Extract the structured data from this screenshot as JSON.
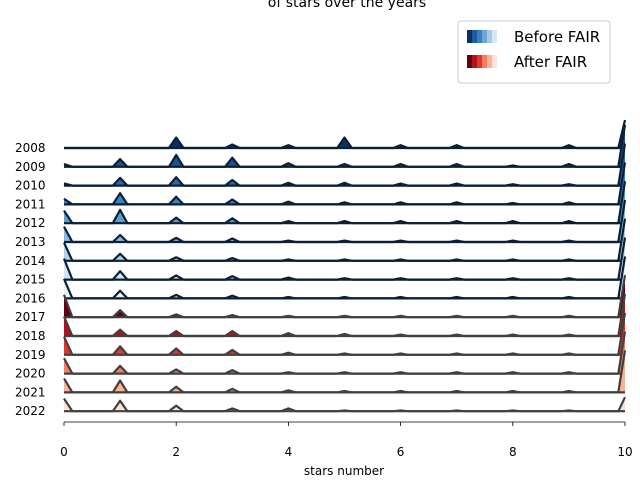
{
  "chart_data": {
    "type": "ridgeline",
    "title": "of stars over the years",
    "xlabel": "stars number",
    "xlim": [
      0,
      10
    ],
    "x_ticks": [
      "0",
      "2",
      "4",
      "6",
      "8",
      "10"
    ],
    "legend": {
      "position": "top-right",
      "entries": [
        {
          "label": "Before FAIR",
          "colormap": "Blues"
        },
        {
          "label": "After FAIR",
          "colormap": "Reds"
        }
      ]
    },
    "x_values": [
      0,
      1,
      2,
      3,
      4,
      5,
      6,
      7,
      8,
      9,
      10
    ],
    "series": [
      {
        "name": "2008",
        "group": "Before FAIR",
        "fill": "#08306b",
        "values": [
          0.0,
          0.0,
          0.75,
          0.25,
          0.2,
          0.75,
          0.2,
          0.2,
          0.0,
          0.2,
          2.0
        ]
      },
      {
        "name": "2009",
        "group": "Before FAIR",
        "fill": "#1f4f91",
        "values": [
          0.2,
          0.55,
          0.85,
          0.65,
          0.25,
          0.2,
          0.2,
          0.2,
          0.1,
          0.2,
          3.0
        ]
      },
      {
        "name": "2010",
        "group": "Before FAIR",
        "fill": "#2b6aad",
        "values": [
          0.15,
          0.55,
          0.6,
          0.4,
          0.2,
          0.2,
          0.15,
          0.15,
          0.1,
          0.1,
          3.0
        ]
      },
      {
        "name": "2011",
        "group": "Before FAIR",
        "fill": "#3e83c0",
        "values": [
          0.4,
          0.8,
          0.55,
          0.35,
          0.2,
          0.15,
          0.15,
          0.15,
          0.1,
          0.15,
          3.0
        ]
      },
      {
        "name": "2012",
        "group": "Before FAIR",
        "fill": "#5b9fd1",
        "values": [
          0.9,
          0.95,
          0.4,
          0.35,
          0.15,
          0.15,
          0.15,
          0.15,
          0.15,
          0.15,
          3.0
        ]
      },
      {
        "name": "2013",
        "group": "Before FAIR",
        "fill": "#86bbe0",
        "values": [
          1.1,
          0.5,
          0.3,
          0.25,
          0.1,
          0.1,
          0.1,
          0.1,
          0.1,
          0.1,
          3.0
        ]
      },
      {
        "name": "2014",
        "group": "Before FAIR",
        "fill": "#b0d2ea",
        "values": [
          1.3,
          0.5,
          0.25,
          0.2,
          0.1,
          0.1,
          0.1,
          0.1,
          0.1,
          0.1,
          3.0
        ]
      },
      {
        "name": "2015",
        "group": "Before FAIR",
        "fill": "#d3e5f4",
        "values": [
          1.5,
          0.6,
          0.3,
          0.25,
          0.15,
          0.1,
          0.1,
          0.1,
          0.1,
          0.1,
          3.0
        ]
      },
      {
        "name": "2016",
        "group": "Before FAIR",
        "fill": "#eaf2fb",
        "values": [
          1.4,
          0.55,
          0.25,
          0.2,
          0.1,
          0.1,
          0.1,
          0.1,
          0.1,
          0.1,
          3.0
        ]
      },
      {
        "name": "2017",
        "group": "After FAIR",
        "fill": "#67000d",
        "values": [
          1.6,
          0.5,
          0.2,
          0.15,
          0.1,
          0.1,
          0.1,
          0.1,
          0.1,
          0.1,
          3.0
        ]
      },
      {
        "name": "2018",
        "group": "After FAIR",
        "fill": "#b01218",
        "values": [
          1.4,
          0.45,
          0.35,
          0.35,
          0.2,
          0.15,
          0.1,
          0.1,
          0.1,
          0.1,
          3.0
        ]
      },
      {
        "name": "2019",
        "group": "After FAIR",
        "fill": "#e0362b",
        "values": [
          1.3,
          0.6,
          0.45,
          0.35,
          0.15,
          0.1,
          0.1,
          0.1,
          0.1,
          0.1,
          3.0
        ]
      },
      {
        "name": "2020",
        "group": "After FAIR",
        "fill": "#f67d60",
        "values": [
          1.1,
          0.55,
          0.3,
          0.25,
          0.1,
          0.1,
          0.1,
          0.1,
          0.1,
          0.1,
          3.0
        ]
      },
      {
        "name": "2021",
        "group": "After FAIR",
        "fill": "#fcb095",
        "values": [
          1.0,
          0.85,
          0.4,
          0.25,
          0.15,
          0.1,
          0.1,
          0.1,
          0.1,
          0.1,
          3.0
        ]
      },
      {
        "name": "2022",
        "group": "After FAIR",
        "fill": "#fde0d2",
        "values": [
          0.9,
          0.75,
          0.4,
          0.2,
          0.2,
          0.05,
          0.05,
          0.05,
          0.05,
          0.05,
          1.0
        ]
      }
    ],
    "grid": false
  }
}
